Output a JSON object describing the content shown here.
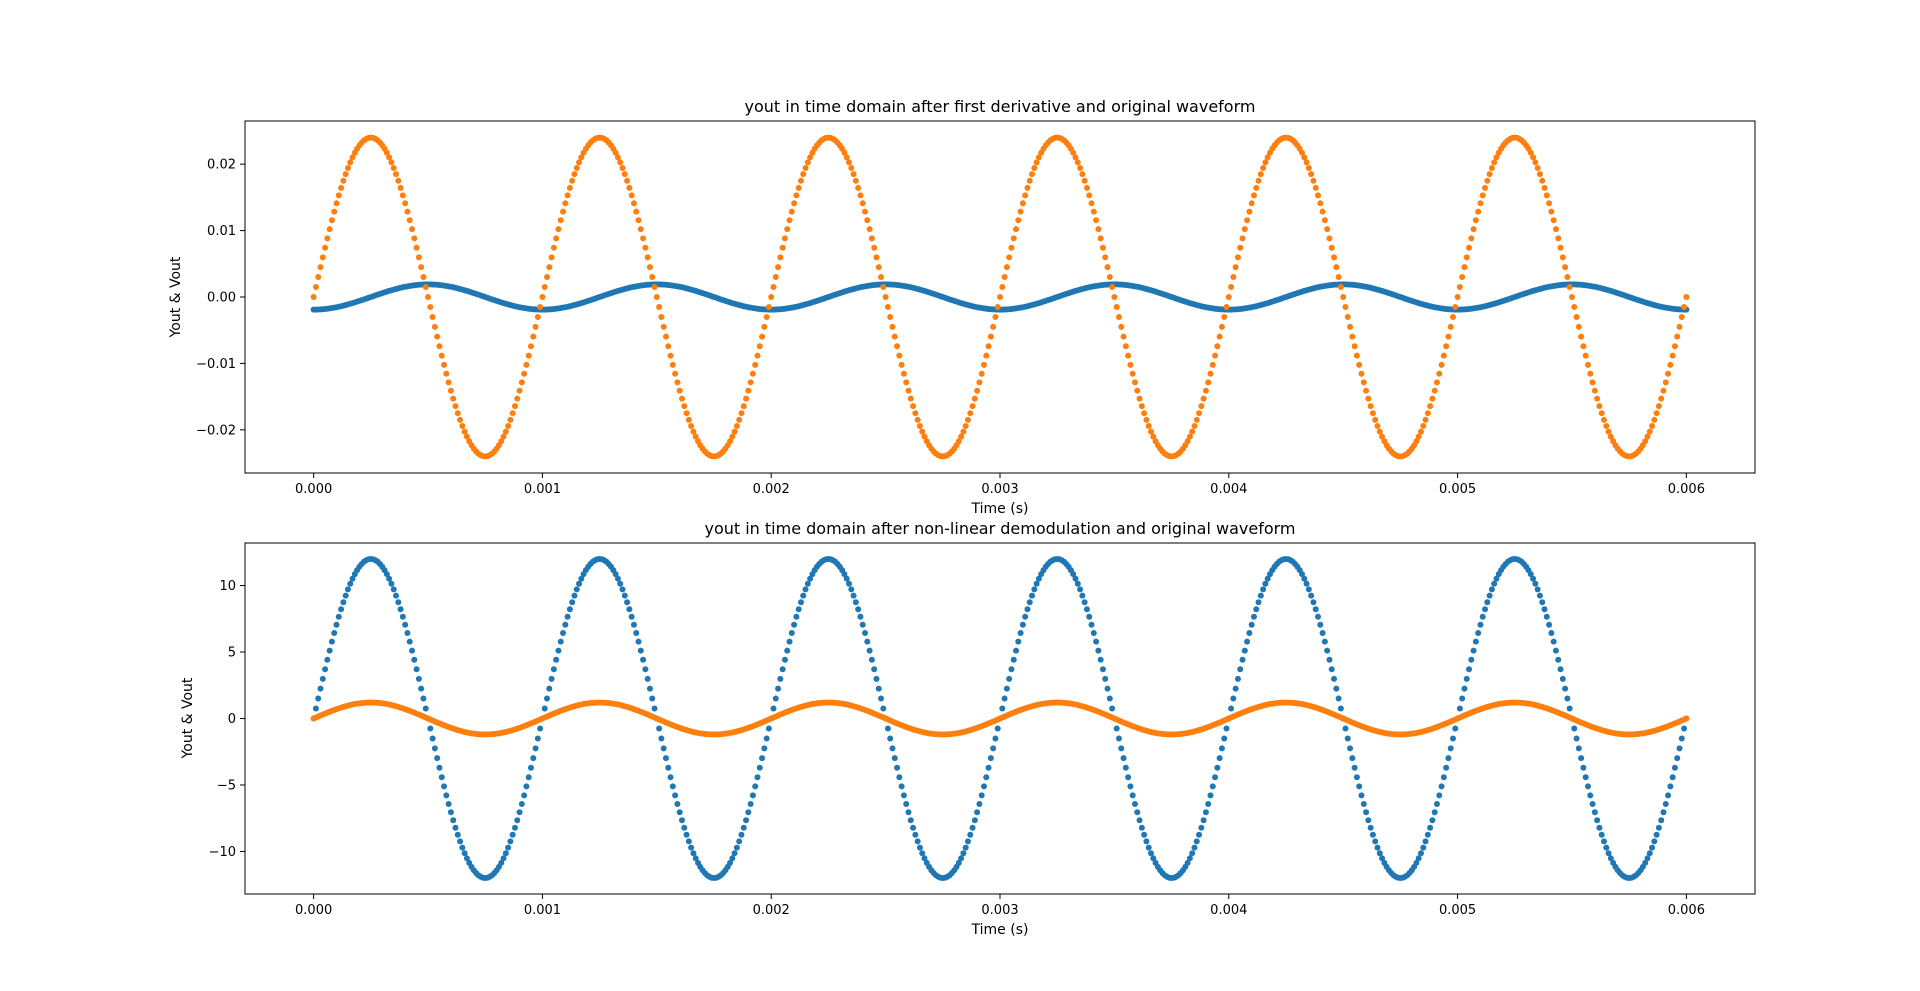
{
  "chart_data": [
    {
      "type": "scatter",
      "title": "yout in time domain after first derivative and original waveform",
      "xlabel": "Time (s)",
      "ylabel": "Yout & Vout",
      "xlim": [
        -0.0003,
        0.0063
      ],
      "ylim": [
        -0.0265,
        0.0265
      ],
      "xticks": [
        0.0,
        0.001,
        0.002,
        0.003,
        0.004,
        0.005,
        0.006
      ],
      "xtick_labels": [
        "0.000",
        "0.001",
        "0.002",
        "0.003",
        "0.004",
        "0.005",
        "0.006"
      ],
      "yticks": [
        -0.02,
        -0.01,
        0.0,
        0.01,
        0.02
      ],
      "ytick_labels": [
        "−0.02",
        "−0.01",
        "0.00",
        "0.01",
        "0.02"
      ],
      "grid": false,
      "series": [
        {
          "color": "#1f77b4",
          "t_range": [
            0,
            0.006
          ],
          "frequency_hz": 1000,
          "amplitude": 0.0019,
          "waveform": "-cos",
          "samples": 600
        },
        {
          "color": "#ff7f0e",
          "t_range": [
            0,
            0.006
          ],
          "frequency_hz": 1000,
          "amplitude": 0.024,
          "waveform": "sin",
          "samples": 600
        }
      ]
    },
    {
      "type": "scatter",
      "title": "yout in time domain after non-linear demodulation and original waveform",
      "xlabel": "Time (s)",
      "ylabel": "Yout & Vout",
      "xlim": [
        -0.0003,
        0.0063
      ],
      "ylim": [
        -13.2,
        13.2
      ],
      "xticks": [
        0.0,
        0.001,
        0.002,
        0.003,
        0.004,
        0.005,
        0.006
      ],
      "xtick_labels": [
        "0.000",
        "0.001",
        "0.002",
        "0.003",
        "0.004",
        "0.005",
        "0.006"
      ],
      "yticks": [
        -10,
        -5,
        0,
        5,
        10
      ],
      "ytick_labels": [
        "−10",
        "−5",
        "0",
        "5",
        "10"
      ],
      "grid": false,
      "series": [
        {
          "color": "#1f77b4",
          "t_range": [
            0,
            0.006
          ],
          "frequency_hz": 1000,
          "amplitude": 12,
          "waveform": "sin",
          "samples": 600
        },
        {
          "color": "#ff7f0e",
          "t_range": [
            0,
            0.006
          ],
          "frequency_hz": 1000,
          "amplitude": 1.2,
          "waveform": "sin",
          "samples": 600
        }
      ]
    }
  ]
}
